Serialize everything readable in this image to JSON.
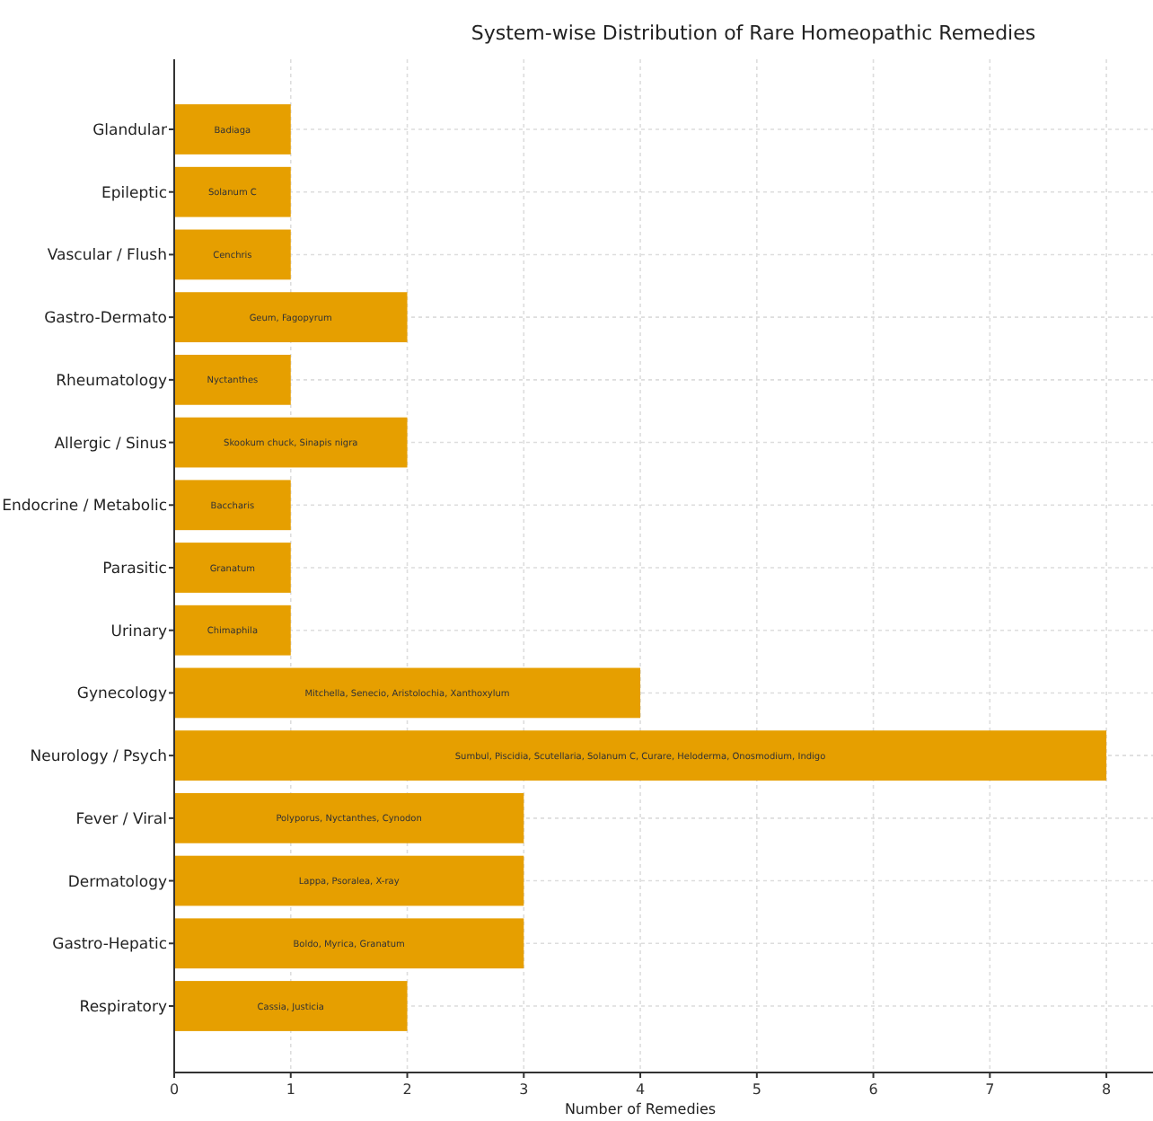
{
  "chart_data": {
    "type": "bar",
    "orientation": "horizontal",
    "title": "System-wise Distribution of Rare Homeopathic Remedies",
    "xlabel": "Number of Remedies",
    "categories": [
      "Glandular",
      "Epileptic",
      "Vascular / Flush",
      "Gastro-Dermato",
      "Rheumatology",
      "Allergic / Sinus",
      "Endocrine / Metabolic",
      "Parasitic",
      "Urinary",
      "Gynecology",
      "Neurology / Psych",
      "Fever / Viral",
      "Dermatology",
      "Gastro-Hepatic",
      "Respiratory"
    ],
    "values": [
      1,
      1,
      1,
      2,
      1,
      2,
      1,
      1,
      1,
      4,
      8,
      3,
      3,
      3,
      2
    ],
    "value_labels": [
      "Badiaga",
      "Solanum C",
      "Cenchris",
      "Geum, Fagopyrum",
      "Nyctanthes",
      "Skookum chuck, Sinapis nigra",
      "Baccharis",
      "Granatum",
      "Chimaphila",
      "Mitchella, Senecio, Aristolochia, Xanthoxylum",
      "Sumbul, Piscidia, Scutellaria, Solanum C, Curare, Heloderma, Onosmodium, Indigo",
      "Polyporus, Nyctanthes, Cynodon",
      "Lappa, Psoralea, X-ray",
      "Boldo, Myrica, Granatum",
      "Cassia, Justicia"
    ],
    "color": "#e69f00",
    "xlim": [
      0,
      8.4
    ],
    "xticks": [
      0,
      1,
      2,
      3,
      4,
      5,
      6,
      7,
      8
    ],
    "grid": true
  }
}
